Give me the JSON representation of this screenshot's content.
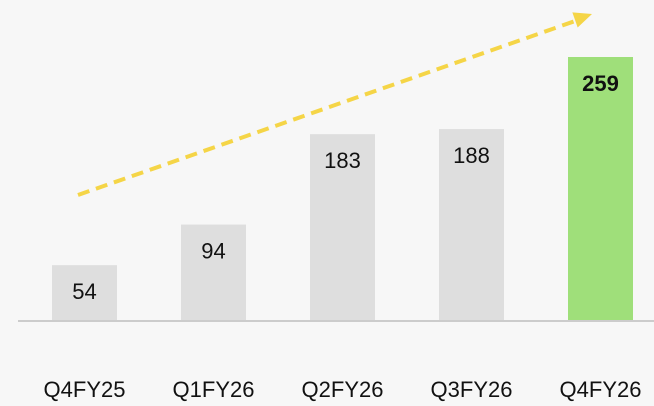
{
  "chart_data": {
    "type": "bar",
    "title": "",
    "xlabel": "",
    "ylabel": "",
    "categories": [
      "Q4FY25",
      "Q1FY26",
      "Q2FY26",
      "Q3FY26",
      "Q4FY26"
    ],
    "values": [
      54,
      94,
      183,
      188,
      259
    ],
    "highlight_index": 4,
    "ylim": [
      0,
      270
    ],
    "grid": false,
    "legend": "none",
    "trend_arrow": true,
    "colors": {
      "bar": "#dedede",
      "highlight": "#9fdf7a",
      "trend": "#f5d547",
      "baseline": "#cccccc",
      "text": "#111111"
    }
  }
}
